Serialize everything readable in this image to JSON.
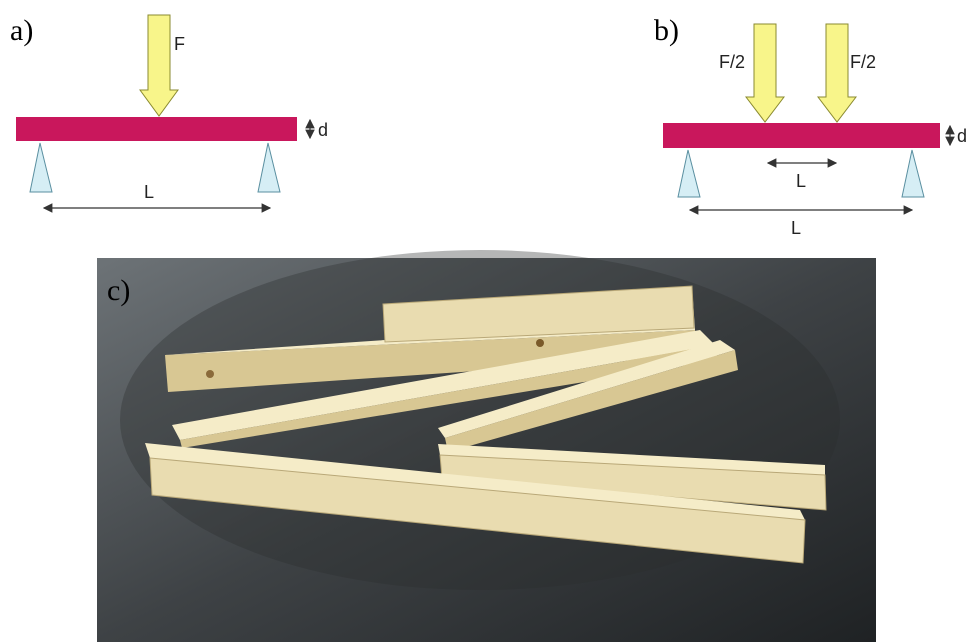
{
  "panels": [
    {
      "label": "a)",
      "force": "F",
      "thickness": "d",
      "span": "L"
    },
    {
      "label": "b)",
      "forces": [
        "F/2",
        "F/2"
      ],
      "thickness": "d",
      "inner_span": "L",
      "span": "L"
    },
    {
      "label": "c)"
    }
  ]
}
